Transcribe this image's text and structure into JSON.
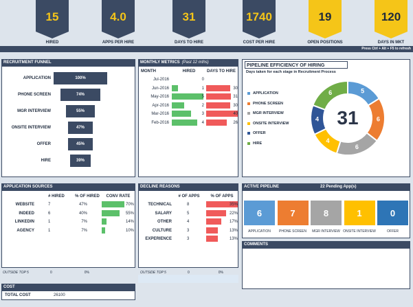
{
  "refresh_hint": "Press Ctrl + Alt + F5 to refresh",
  "kpis": [
    {
      "value": "15",
      "label": "HIRED"
    },
    {
      "value": "4.0",
      "label": "APPS PER HIRE"
    },
    {
      "value": "31",
      "label": "DAYS TO HIRE"
    },
    {
      "value": "1740",
      "label": "COST PER HIRE"
    },
    {
      "value": "19",
      "label": "OPEN POSITIONS"
    },
    {
      "value": "120",
      "label": "DAYS IN MKT"
    }
  ],
  "funnel": {
    "title": "RECRUITMENT FUNNEL",
    "stages": [
      "APPLICATION",
      "PHONE SCREEN",
      "MGR INTERVIEW",
      "ONSITE INTERVIEW",
      "OFFER",
      "HIRE"
    ],
    "values": [
      100,
      74,
      55,
      47,
      45,
      39
    ],
    "value_labels": [
      "100%",
      "74%",
      "55%",
      "47%",
      "45%",
      "39%"
    ]
  },
  "monthly": {
    "title": "MONTHLY METRICS",
    "subtitle": "(Past 12 mths)",
    "headers": [
      "MONTH",
      "HIRED",
      "DAYS TO HIRE"
    ],
    "months": [
      "Jul-2016",
      "Jun-2016",
      "May-2016",
      "Apr-2016",
      "Mar-2016",
      "Feb-2016"
    ],
    "hired": [
      0,
      1,
      5,
      2,
      3,
      4
    ],
    "days": [
      null,
      30,
      31,
      30,
      40,
      26
    ]
  },
  "efficiency": {
    "title": "PIPELINE EFFICIENCY OF HIRING",
    "subtitle": "Days taken for each stage in Recruitment Process",
    "total": 31,
    "stages": [
      {
        "name": "APPLICATION",
        "color": "#5b9bd5"
      },
      {
        "name": "PHONE SCREEN",
        "color": "#ed7d31"
      },
      {
        "name": "MGR INTERVIEW",
        "color": "#a5a5a5"
      },
      {
        "name": "ONSITE INTERVIEW",
        "color": "#ffc000"
      },
      {
        "name": "OFFER",
        "color": "#2f5597"
      },
      {
        "name": "HIRE",
        "color": "#70ad47"
      }
    ],
    "values": [
      5,
      6,
      6,
      4,
      4,
      6
    ]
  },
  "sources": {
    "title": "APPLICATION SOURCES",
    "headers": [
      "# HIRED",
      "% OF HIRED",
      "CONV RATE"
    ],
    "names": [
      "WEBSITE",
      "INDEED",
      "LINKEDIN",
      "AGENCY"
    ],
    "hired": [
      "7",
      "6",
      "1",
      "1"
    ],
    "pct": [
      "47%",
      "40%",
      "7%",
      "7%"
    ],
    "conv": [
      70,
      55,
      14,
      10
    ],
    "conv_labels": [
      "70%",
      "55%",
      "14%",
      "10%"
    ],
    "outside": {
      "label": "OUTSIDE TOP 5",
      "hired": "0",
      "pct": "0%"
    }
  },
  "declines": {
    "title": "DECLINE REASONS",
    "headers": [
      "# OF APPS",
      "% OF APPS"
    ],
    "names": [
      "TECHNICAL",
      "SALARY",
      "OTHER",
      "CULTURE",
      "EXPERIENCE"
    ],
    "apps": [
      "8",
      "5",
      "4",
      "3",
      "3"
    ],
    "pct": [
      35,
      22,
      17,
      13,
      13
    ],
    "pct_labels": [
      "35%",
      "22%",
      "17%",
      "13%",
      "13%"
    ],
    "outside": {
      "label": "OUTSIDE TOP 5",
      "apps": "0",
      "pct": "0%"
    }
  },
  "active": {
    "title": "ACTIVE PIPELINE",
    "pending": "22 Pending App(s)",
    "stages": [
      {
        "name": "APPLICATION",
        "value": "6",
        "color": "#5b9bd5"
      },
      {
        "name": "PHONE SCREEN",
        "value": "7",
        "color": "#ed7d31"
      },
      {
        "name": "MGR INTERVIEW",
        "value": "8",
        "color": "#a5a5a5"
      },
      {
        "name": "ONSITE INTERVIEW",
        "value": "1",
        "color": "#ffc000"
      },
      {
        "name": "OFFER",
        "value": "0",
        "color": "#2e75b6"
      }
    ]
  },
  "comments": {
    "title": "COMMENTS"
  },
  "cost": {
    "title": "COST",
    "label": "TOTAL COST",
    "value": "26100"
  }
}
